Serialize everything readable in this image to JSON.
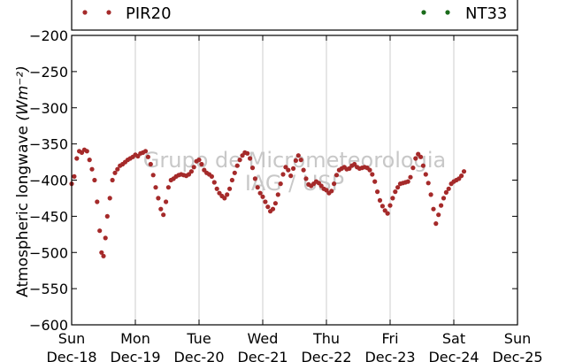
{
  "chart_data": {
    "type": "scatter",
    "ylabel": "Atmospheric longwave",
    "ylabel_unit": "(Wm⁻²)",
    "ylim": [
      -600,
      -200
    ],
    "yticks": [
      "−200",
      "−250",
      "−300",
      "−350",
      "−400",
      "−450",
      "−500",
      "−550",
      "−600"
    ],
    "xlim": [
      "2022-12-18",
      "2022-12-25"
    ],
    "xticks": [
      {
        "day": "Sun",
        "date": "Dec-18"
      },
      {
        "day": "Mon",
        "date": "Dec-19"
      },
      {
        "day": "Tue",
        "date": "Dec-20"
      },
      {
        "day": "Wed",
        "date": "Dec-21"
      },
      {
        "day": "Thu",
        "date": "Dec-22"
      },
      {
        "day": "Fri",
        "date": "Dec-23"
      },
      {
        "day": "Sat",
        "date": "Dec-24"
      },
      {
        "day": "Sun",
        "date": "Dec-25"
      }
    ],
    "grid": "vertical",
    "legend": "top",
    "watermark": [
      "Grupo de Micrometeorologia",
      "IAG / USP"
    ],
    "series": [
      {
        "name": "PIR20",
        "color": "#a52a2a",
        "points": [
          [
            0.0,
            -405
          ],
          [
            0.04,
            -395
          ],
          [
            0.08,
            -370
          ],
          [
            0.12,
            -360
          ],
          [
            0.16,
            -362
          ],
          [
            0.2,
            -358
          ],
          [
            0.24,
            -360
          ],
          [
            0.28,
            -372
          ],
          [
            0.32,
            -385
          ],
          [
            0.36,
            -400
          ],
          [
            0.4,
            -430
          ],
          [
            0.44,
            -470
          ],
          [
            0.47,
            -500
          ],
          [
            0.5,
            -505
          ],
          [
            0.53,
            -480
          ],
          [
            0.56,
            -450
          ],
          [
            0.6,
            -425
          ],
          [
            0.64,
            -400
          ],
          [
            0.68,
            -390
          ],
          [
            0.72,
            -385
          ],
          [
            0.76,
            -380
          ],
          [
            0.8,
            -378
          ],
          [
            0.84,
            -375
          ],
          [
            0.88,
            -372
          ],
          [
            0.92,
            -370
          ],
          [
            0.96,
            -368
          ],
          [
            1.0,
            -365
          ],
          [
            1.04,
            -367
          ],
          [
            1.08,
            -363
          ],
          [
            1.12,
            -362
          ],
          [
            1.16,
            -360
          ],
          [
            1.2,
            -368
          ],
          [
            1.24,
            -378
          ],
          [
            1.28,
            -393
          ],
          [
            1.32,
            -410
          ],
          [
            1.36,
            -425
          ],
          [
            1.4,
            -440
          ],
          [
            1.44,
            -448
          ],
          [
            1.48,
            -430
          ],
          [
            1.52,
            -410
          ],
          [
            1.56,
            -400
          ],
          [
            1.6,
            -398
          ],
          [
            1.64,
            -395
          ],
          [
            1.68,
            -393
          ],
          [
            1.72,
            -392
          ],
          [
            1.76,
            -393
          ],
          [
            1.8,
            -394
          ],
          [
            1.84,
            -392
          ],
          [
            1.88,
            -388
          ],
          [
            1.92,
            -382
          ],
          [
            1.96,
            -374
          ],
          [
            2.0,
            -372
          ],
          [
            2.04,
            -378
          ],
          [
            2.08,
            -386
          ],
          [
            2.12,
            -390
          ],
          [
            2.16,
            -392
          ],
          [
            2.2,
            -395
          ],
          [
            2.24,
            -403
          ],
          [
            2.28,
            -412
          ],
          [
            2.32,
            -418
          ],
          [
            2.36,
            -422
          ],
          [
            2.4,
            -425
          ],
          [
            2.44,
            -420
          ],
          [
            2.48,
            -412
          ],
          [
            2.52,
            -400
          ],
          [
            2.56,
            -390
          ],
          [
            2.6,
            -380
          ],
          [
            2.64,
            -372
          ],
          [
            2.68,
            -366
          ],
          [
            2.72,
            -362
          ],
          [
            2.76,
            -363
          ],
          [
            2.8,
            -370
          ],
          [
            2.84,
            -383
          ],
          [
            2.88,
            -398
          ],
          [
            2.92,
            -410
          ],
          [
            2.96,
            -418
          ],
          [
            3.0,
            -423
          ],
          [
            3.04,
            -430
          ],
          [
            3.08,
            -437
          ],
          [
            3.12,
            -443
          ],
          [
            3.16,
            -440
          ],
          [
            3.2,
            -432
          ],
          [
            3.24,
            -420
          ],
          [
            3.28,
            -405
          ],
          [
            3.32,
            -392
          ],
          [
            3.36,
            -382
          ],
          [
            3.4,
            -386
          ],
          [
            3.44,
            -394
          ],
          [
            3.48,
            -384
          ],
          [
            3.52,
            -373
          ],
          [
            3.56,
            -366
          ],
          [
            3.6,
            -372
          ],
          [
            3.64,
            -386
          ],
          [
            3.68,
            -398
          ],
          [
            3.72,
            -406
          ],
          [
            3.76,
            -408
          ],
          [
            3.8,
            -405
          ],
          [
            3.84,
            -402
          ],
          [
            3.88,
            -404
          ],
          [
            3.92,
            -408
          ],
          [
            3.96,
            -412
          ],
          [
            4.0,
            -414
          ],
          [
            4.04,
            -418
          ],
          [
            4.08,
            -415
          ],
          [
            4.12,
            -405
          ],
          [
            4.16,
            -393
          ],
          [
            4.2,
            -386
          ],
          [
            4.24,
            -384
          ],
          [
            4.28,
            -382
          ],
          [
            4.32,
            -385
          ],
          [
            4.36,
            -384
          ],
          [
            4.4,
            -380
          ],
          [
            4.44,
            -378
          ],
          [
            4.48,
            -382
          ],
          [
            4.52,
            -384
          ],
          [
            4.56,
            -383
          ],
          [
            4.6,
            -382
          ],
          [
            4.64,
            -383
          ],
          [
            4.68,
            -386
          ],
          [
            4.72,
            -392
          ],
          [
            4.76,
            -402
          ],
          [
            4.8,
            -416
          ],
          [
            4.84,
            -428
          ],
          [
            4.88,
            -436
          ],
          [
            4.92,
            -442
          ],
          [
            4.96,
            -446
          ],
          [
            5.0,
            -435
          ],
          [
            5.04,
            -425
          ],
          [
            5.08,
            -416
          ],
          [
            5.12,
            -410
          ],
          [
            5.16,
            -405
          ],
          [
            5.2,
            -404
          ],
          [
            5.24,
            -403
          ],
          [
            5.28,
            -402
          ],
          [
            5.32,
            -396
          ],
          [
            5.36,
            -383
          ],
          [
            5.4,
            -370
          ],
          [
            5.44,
            -364
          ],
          [
            5.48,
            -368
          ],
          [
            5.52,
            -380
          ],
          [
            5.56,
            -392
          ],
          [
            5.6,
            -404
          ],
          [
            5.64,
            -420
          ],
          [
            5.68,
            -440
          ],
          [
            5.72,
            -460
          ],
          [
            5.76,
            -448
          ],
          [
            5.8,
            -435
          ],
          [
            5.84,
            -425
          ],
          [
            5.88,
            -417
          ],
          [
            5.92,
            -412
          ],
          [
            5.96,
            -405
          ],
          [
            6.0,
            -402
          ],
          [
            6.04,
            -400
          ],
          [
            6.08,
            -398
          ],
          [
            6.12,
            -394
          ],
          [
            6.16,
            -388
          ]
        ]
      },
      {
        "name": "NT33",
        "color": "#1a6b1a",
        "points": []
      }
    ]
  }
}
